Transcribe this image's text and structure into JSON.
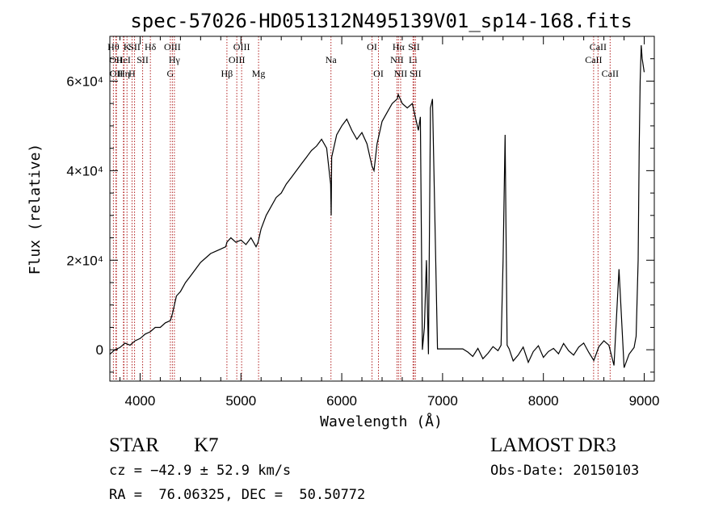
{
  "chart_data": {
    "type": "line",
    "title": "spec-57026-HD051312N495139V01_sp14-168.fits",
    "xlabel": "Wavelength (Å)",
    "ylabel": "Flux (relative)",
    "xlim": [
      3700,
      9100
    ],
    "ylim": [
      -7000,
      70000
    ],
    "x_ticks": [
      4000,
      5000,
      6000,
      7000,
      8000,
      9000
    ],
    "y_ticks": [
      {
        "value": 0,
        "label": "0"
      },
      {
        "value": 20000,
        "label": "2×10⁴"
      },
      {
        "value": 40000,
        "label": "4×10⁴"
      },
      {
        "value": 60000,
        "label": "6×10⁴"
      }
    ],
    "line_color": "#000000",
    "marker_color": "#b22222",
    "series": [
      {
        "name": "spectrum",
        "x": [
          3700,
          3750,
          3800,
          3850,
          3900,
          3950,
          4000,
          4050,
          4100,
          4150,
          4200,
          4250,
          4300,
          4320,
          4340,
          4360,
          4400,
          4450,
          4500,
          4550,
          4600,
          4650,
          4700,
          4750,
          4800,
          4850,
          4860,
          4900,
          4950,
          5000,
          5050,
          5100,
          5150,
          5170,
          5200,
          5250,
          5300,
          5350,
          5400,
          5450,
          5500,
          5550,
          5600,
          5650,
          5700,
          5750,
          5800,
          5850,
          5890,
          5895,
          5900,
          5950,
          6000,
          6050,
          6100,
          6150,
          6200,
          6250,
          6300,
          6320,
          6350,
          6400,
          6450,
          6500,
          6550,
          6560,
          6600,
          6650,
          6700,
          6720,
          6740,
          6760,
          6780,
          6790,
          6800,
          6820,
          6840,
          6860,
          6880,
          6900,
          6950,
          7000,
          7100,
          7200,
          7250,
          7300,
          7350,
          7400,
          7450,
          7500,
          7550,
          7580,
          7600,
          7620,
          7640,
          7660,
          7700,
          7750,
          7800,
          7850,
          7900,
          7950,
          8000,
          8050,
          8100,
          8150,
          8200,
          8250,
          8300,
          8350,
          8400,
          8450,
          8500,
          8550,
          8600,
          8650,
          8700,
          8750,
          8800,
          8850,
          8900,
          8920,
          8940,
          8950,
          8960,
          8970,
          8980,
          9000
        ],
        "y": [
          -1000,
          0,
          500,
          1500,
          1000,
          2000,
          2500,
          3500,
          4000,
          5000,
          5000,
          6000,
          6500,
          8000,
          10000,
          12000,
          13000,
          15000,
          16500,
          18000,
          19500,
          20500,
          21500,
          22000,
          22500,
          23000,
          24000,
          25000,
          24000,
          24500,
          23500,
          25000,
          23000,
          24000,
          27000,
          30000,
          32000,
          34000,
          35000,
          37000,
          38500,
          40000,
          41500,
          43000,
          44500,
          45500,
          47000,
          45000,
          37000,
          30000,
          43000,
          48000,
          50000,
          51500,
          49000,
          47000,
          48500,
          46000,
          41000,
          40000,
          46000,
          51000,
          53000,
          55000,
          56000,
          57000,
          55000,
          54000,
          55000,
          53000,
          51000,
          49000,
          52000,
          25000,
          0,
          5000,
          20000,
          -1000,
          54000,
          56000,
          200,
          200,
          200,
          200,
          -500,
          -1500,
          300,
          -2000,
          -800,
          700,
          -200,
          1000,
          20000,
          48000,
          1000,
          200,
          -2500,
          -1200,
          600,
          -2800,
          -400,
          900,
          -1700,
          -400,
          300,
          -900,
          1400,
          -200,
          -1200,
          600,
          1500,
          -600,
          -2400,
          700,
          2000,
          1000,
          -3500,
          18000,
          -4000,
          -1000,
          500,
          3000,
          20000,
          45000,
          60000,
          68000,
          65000,
          62000
        ]
      }
    ],
    "line_markers": [
      {
        "x": 3735,
        "row": 0,
        "label": "Hθ"
      },
      {
        "x": 3760,
        "row": 1,
        "label": "OII"
      },
      {
        "x": 3765,
        "row": 2,
        "label": "OII"
      },
      {
        "x": 3835,
        "row": 1,
        "label": "HeI"
      },
      {
        "x": 3840,
        "row": 2,
        "label": "Hη"
      },
      {
        "x": 3870,
        "row": 0,
        "label": "K"
      },
      {
        "x": 3920,
        "row": 2,
        "label": "H"
      },
      {
        "x": 3945,
        "row": 0,
        "label": "SII"
      },
      {
        "x": 4025,
        "row": 1,
        "label": "SII"
      },
      {
        "x": 4102,
        "row": 0,
        "label": "Hδ"
      },
      {
        "x": 4300,
        "row": 2,
        "label": "G"
      },
      {
        "x": 4320,
        "row": 0,
        "label": "OIII"
      },
      {
        "x": 4340,
        "row": 1,
        "label": "Hγ"
      },
      {
        "x": 4861,
        "row": 2,
        "label": "Hβ"
      },
      {
        "x": 4959,
        "row": 1,
        "label": "OIII"
      },
      {
        "x": 5007,
        "row": 0,
        "label": "OIII"
      },
      {
        "x": 5175,
        "row": 2,
        "label": "Mg"
      },
      {
        "x": 5893,
        "row": 1,
        "label": "Na"
      },
      {
        "x": 6300,
        "row": 0,
        "label": "OI"
      },
      {
        "x": 6364,
        "row": 2,
        "label": "OI"
      },
      {
        "x": 6548,
        "row": 1,
        "label": "NII"
      },
      {
        "x": 6563,
        "row": 0,
        "label": "Hα"
      },
      {
        "x": 6584,
        "row": 2,
        "label": "NII"
      },
      {
        "x": 6707,
        "row": 1,
        "label": "Li"
      },
      {
        "x": 6716,
        "row": 0,
        "label": "SII"
      },
      {
        "x": 6731,
        "row": 2,
        "label": "SII"
      },
      {
        "x": 8498,
        "row": 1,
        "label": "CaII"
      },
      {
        "x": 8542,
        "row": 0,
        "label": "CaII"
      },
      {
        "x": 8662,
        "row": 2,
        "label": "CaII"
      }
    ]
  },
  "info": {
    "object_class": "STAR",
    "subclass": "K7",
    "survey": "LAMOST DR3",
    "cz": "cz = −42.9 ± 52.9 km/s",
    "obs_date": "Obs-Date: 20150103",
    "coords": "RA =  76.06325, DEC =  50.50772"
  }
}
